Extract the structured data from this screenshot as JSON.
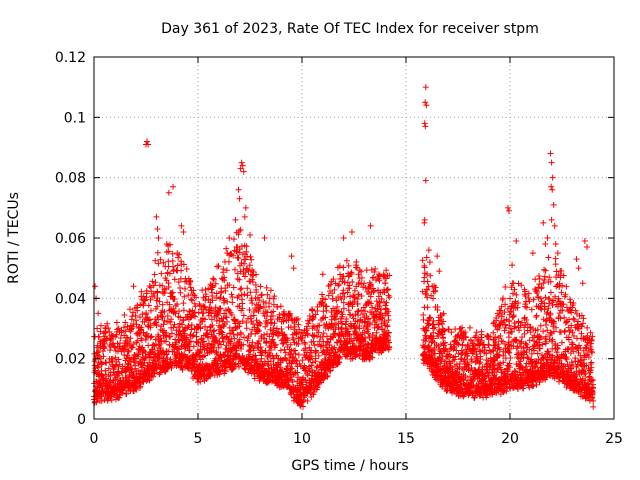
{
  "chart_data": {
    "type": "scatter",
    "title": "Day 361 of 2023, Rate Of TEC Index for receiver stpm",
    "xlabel": "GPS time / hours",
    "ylabel": "ROTI / TECUs",
    "xlim": [
      0,
      25
    ],
    "ylim": [
      0,
      0.12
    ],
    "xticks": [
      0,
      5,
      10,
      15,
      20,
      25
    ],
    "xtick_labels": [
      "0",
      "5",
      "10",
      "15",
      "20",
      "25"
    ],
    "yticks": [
      0,
      0.02,
      0.04,
      0.06,
      0.08,
      0.1,
      0.12
    ],
    "ytick_labels": [
      "0",
      "0.02",
      "0.04",
      "0.06",
      "0.08",
      "0.1",
      "0.12"
    ],
    "grid": true,
    "marker": "plus",
    "color": "#ff0000",
    "data_gap_hours": [
      14.2,
      15.8
    ],
    "envelope": [
      {
        "x": 0.0,
        "base": 0.013,
        "spread": 0.014,
        "peak": 0.044
      },
      {
        "x": 1.0,
        "base": 0.014,
        "spread": 0.012,
        "peak": 0.032
      },
      {
        "x": 2.0,
        "base": 0.017,
        "spread": 0.018,
        "peak": 0.044
      },
      {
        "x": 2.6,
        "base": 0.02,
        "spread": 0.02,
        "peak": 0.092
      },
      {
        "x": 3.0,
        "base": 0.022,
        "spread": 0.03,
        "peak": 0.067
      },
      {
        "x": 4.0,
        "base": 0.025,
        "spread": 0.03,
        "peak": 0.077
      },
      {
        "x": 5.0,
        "base": 0.02,
        "spread": 0.015,
        "peak": 0.045
      },
      {
        "x": 6.0,
        "base": 0.022,
        "spread": 0.025,
        "peak": 0.06
      },
      {
        "x": 7.0,
        "base": 0.025,
        "spread": 0.035,
        "peak": 0.085
      },
      {
        "x": 8.0,
        "base": 0.02,
        "spread": 0.022,
        "peak": 0.06
      },
      {
        "x": 9.0,
        "base": 0.018,
        "spread": 0.018,
        "peak": 0.054
      },
      {
        "x": 10.0,
        "base": 0.011,
        "spread": 0.015,
        "peak": 0.035
      },
      {
        "x": 11.0,
        "base": 0.02,
        "spread": 0.018,
        "peak": 0.05
      },
      {
        "x": 12.0,
        "base": 0.028,
        "spread": 0.02,
        "peak": 0.061
      },
      {
        "x": 13.0,
        "base": 0.027,
        "spread": 0.02,
        "peak": 0.064
      },
      {
        "x": 14.0,
        "base": 0.03,
        "spread": 0.015,
        "peak": 0.048
      },
      {
        "x": 16.0,
        "base": 0.025,
        "spread": 0.025,
        "peak": 0.11
      },
      {
        "x": 17.0,
        "base": 0.016,
        "spread": 0.01,
        "peak": 0.03
      },
      {
        "x": 18.0,
        "base": 0.015,
        "spread": 0.01,
        "peak": 0.03
      },
      {
        "x": 19.0,
        "base": 0.015,
        "spread": 0.01,
        "peak": 0.03
      },
      {
        "x": 20.0,
        "base": 0.017,
        "spread": 0.025,
        "peak": 0.07
      },
      {
        "x": 21.0,
        "base": 0.018,
        "spread": 0.02,
        "peak": 0.05
      },
      {
        "x": 22.0,
        "base": 0.022,
        "spread": 0.03,
        "peak": 0.088
      },
      {
        "x": 23.0,
        "base": 0.017,
        "spread": 0.02,
        "peak": 0.057
      },
      {
        "x": 24.0,
        "base": 0.013,
        "spread": 0.01,
        "peak": 0.025
      }
    ],
    "series": [
      {
        "name": "ROTI",
        "points": [
          [
            0.05,
            0.044
          ],
          [
            0.1,
            0.04
          ],
          [
            0.15,
            0.03
          ],
          [
            0.2,
            0.035
          ],
          [
            1.1,
            0.032
          ],
          [
            1.9,
            0.044
          ],
          [
            2.5,
            0.091
          ],
          [
            2.55,
            0.092
          ],
          [
            2.6,
            0.091
          ],
          [
            3.0,
            0.067
          ],
          [
            3.05,
            0.063
          ],
          [
            3.1,
            0.06
          ],
          [
            3.6,
            0.075
          ],
          [
            3.8,
            0.077
          ],
          [
            4.2,
            0.064
          ],
          [
            4.3,
            0.062
          ],
          [
            4.0,
            0.055
          ],
          [
            3.5,
            0.058
          ],
          [
            6.5,
            0.06
          ],
          [
            6.8,
            0.066
          ],
          [
            6.95,
            0.076
          ],
          [
            7.05,
            0.083
          ],
          [
            7.1,
            0.085
          ],
          [
            7.15,
            0.084
          ],
          [
            7.2,
            0.082
          ],
          [
            7.0,
            0.073
          ],
          [
            7.3,
            0.07
          ],
          [
            7.25,
            0.067
          ],
          [
            7.5,
            0.061
          ],
          [
            8.2,
            0.06
          ],
          [
            9.5,
            0.054
          ],
          [
            9.6,
            0.05
          ],
          [
            10.5,
            0.033
          ],
          [
            11.0,
            0.048
          ],
          [
            12.0,
            0.06
          ],
          [
            12.4,
            0.062
          ],
          [
            12.6,
            0.051
          ],
          [
            13.3,
            0.064
          ],
          [
            13.7,
            0.048
          ],
          [
            14.0,
            0.045
          ],
          [
            15.95,
            0.11
          ],
          [
            15.92,
            0.105
          ],
          [
            15.98,
            0.104
          ],
          [
            15.9,
            0.098
          ],
          [
            15.93,
            0.097
          ],
          [
            15.95,
            0.079
          ],
          [
            15.9,
            0.066
          ],
          [
            15.88,
            0.065
          ],
          [
            16.1,
            0.056
          ],
          [
            16.15,
            0.052
          ],
          [
            16.5,
            0.054
          ],
          [
            16.6,
            0.049
          ],
          [
            16.0,
            0.043
          ],
          [
            16.3,
            0.04
          ],
          [
            19.9,
            0.07
          ],
          [
            19.95,
            0.069
          ],
          [
            20.3,
            0.059
          ],
          [
            20.1,
            0.051
          ],
          [
            21.1,
            0.055
          ],
          [
            21.6,
            0.065
          ],
          [
            21.7,
            0.058
          ],
          [
            21.8,
            0.06
          ],
          [
            21.95,
            0.088
          ],
          [
            22.0,
            0.085
          ],
          [
            22.05,
            0.08
          ],
          [
            21.98,
            0.077
          ],
          [
            22.03,
            0.076
          ],
          [
            22.1,
            0.071
          ],
          [
            22.0,
            0.066
          ],
          [
            22.15,
            0.064
          ],
          [
            22.2,
            0.058
          ],
          [
            22.3,
            0.055
          ],
          [
            23.2,
            0.053
          ],
          [
            23.3,
            0.05
          ],
          [
            23.6,
            0.059
          ],
          [
            23.7,
            0.057
          ],
          [
            23.5,
            0.045
          ],
          [
            23.9,
            0.025
          ],
          [
            24.0,
            0.004
          ],
          [
            24.0,
            0.006
          ],
          [
            23.95,
            0.008
          ]
        ]
      }
    ]
  }
}
